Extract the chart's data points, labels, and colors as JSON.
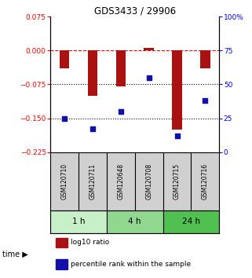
{
  "title": "GDS3433 / 29906",
  "samples": [
    "GSM120710",
    "GSM120711",
    "GSM120648",
    "GSM120708",
    "GSM120715",
    "GSM120716"
  ],
  "log10_ratio": [
    -0.04,
    -0.1,
    -0.08,
    0.005,
    -0.175,
    -0.04
  ],
  "percentile_rank": [
    25,
    17,
    30,
    55,
    12,
    38
  ],
  "ylim_left": [
    -0.225,
    0.075
  ],
  "ylim_right": [
    0,
    100
  ],
  "yticks_left": [
    0.075,
    0,
    -0.075,
    -0.15,
    -0.225
  ],
  "yticks_right": [
    100,
    75,
    50,
    25,
    0
  ],
  "hlines": [
    0,
    -0.075,
    -0.15
  ],
  "hline_styles": [
    "--",
    ":",
    ":"
  ],
  "hline_colors": [
    "red",
    "black",
    "black"
  ],
  "time_groups": [
    {
      "label": "1 h",
      "start": 0,
      "end": 2,
      "color": "#c8f0c8"
    },
    {
      "label": "4 h",
      "start": 2,
      "end": 4,
      "color": "#90d890"
    },
    {
      "label": "24 h",
      "start": 4,
      "end": 6,
      "color": "#50c050"
    }
  ],
  "bar_color": "#aa1111",
  "dot_color": "#1111aa",
  "legend_items": [
    {
      "label": "log10 ratio",
      "color": "#aa1111"
    },
    {
      "label": "percentile rank within the sample",
      "color": "#1111aa"
    }
  ],
  "bar_width": 0.35,
  "sample_box_color": "#d0d0d0",
  "bg_color": "#ffffff"
}
